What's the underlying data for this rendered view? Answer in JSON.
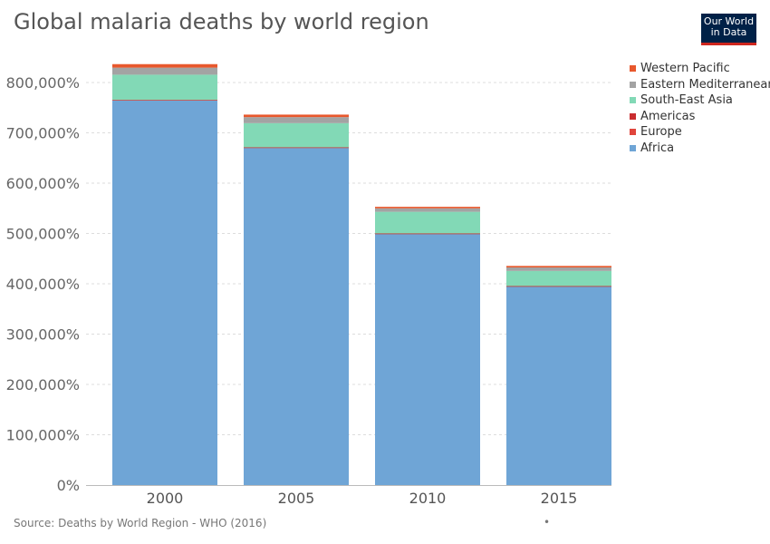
{
  "title": "Global malaria deaths by world region",
  "logo": {
    "line1": "Our World",
    "line2": "in Data"
  },
  "source": "Source: Deaths by World Region - WHO (2016)",
  "footer_dot": "•",
  "chart_data": {
    "type": "bar",
    "stacked": true,
    "title": "Global malaria deaths by world region",
    "xlabel": "",
    "ylabel": "",
    "categories": [
      "2000",
      "2005",
      "2010",
      "2015"
    ],
    "ylim": [
      0,
      800000
    ],
    "yticks": [
      {
        "value": 0,
        "label": "0%"
      },
      {
        "value": 100000,
        "label": "100,000%"
      },
      {
        "value": 200000,
        "label": "200,000%"
      },
      {
        "value": 300000,
        "label": "300,000%"
      },
      {
        "value": 400000,
        "label": "400,000%"
      },
      {
        "value": 500000,
        "label": "500,000%"
      },
      {
        "value": 600000,
        "label": "600,000%"
      },
      {
        "value": 700000,
        "label": "700,000%"
      },
      {
        "value": 800000,
        "label": "800,000%"
      }
    ],
    "grid": true,
    "legend_position": "right",
    "series": [
      {
        "name": "Africa",
        "color": "#6fa5d6",
        "values": [
          764000,
          670000,
          499000,
          395000
        ]
      },
      {
        "name": "Europe",
        "color": "#e0453c",
        "values": [
          0,
          0,
          0,
          0
        ]
      },
      {
        "name": "Americas",
        "color": "#c92d2f",
        "values": [
          1500,
          1200,
          1000,
          500
        ]
      },
      {
        "name": "South-East Asia",
        "color": "#82d9b6",
        "values": [
          50000,
          48000,
          43000,
          30000
        ]
      },
      {
        "name": "Eastern Mediterranean",
        "color": "#a3a3a3",
        "values": [
          14000,
          12000,
          7000,
          7000
        ]
      },
      {
        "name": "Western Pacific",
        "color": "#e8582d",
        "values": [
          7000,
          5000,
          3000,
          3000
        ]
      }
    ]
  }
}
